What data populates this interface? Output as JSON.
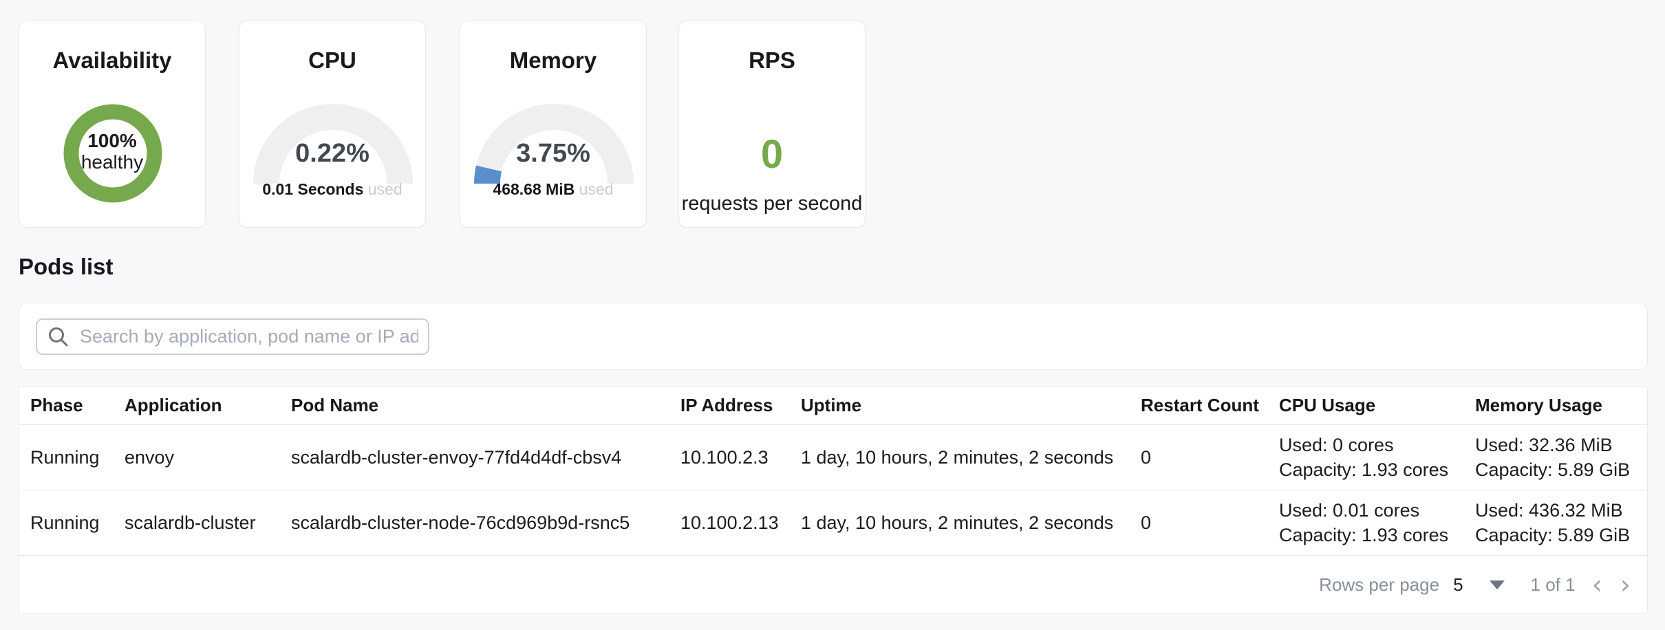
{
  "colors": {
    "accent_green": "#76a94d",
    "gauge_blue": "#5b8dcd",
    "gauge_track": "#efefef",
    "page_background": "#f7f8fa"
  },
  "cards": {
    "availability": {
      "title": "Availability",
      "value": "100%",
      "label": "healthy"
    },
    "cpu": {
      "title": "CPU",
      "percent_text": "0.22%",
      "percent_value": 0.22,
      "used": "0.01 Seconds",
      "used_suffix": "used"
    },
    "memory": {
      "title": "Memory",
      "percent_text": "3.75%",
      "percent_value": 3.75,
      "used": "468.68 MiB",
      "used_suffix": "used"
    },
    "rps": {
      "title": "RPS",
      "value": "0",
      "label": "requests per second"
    }
  },
  "pods": {
    "heading": "Pods list",
    "search_placeholder": "Search by application, pod name or IP address",
    "table": {
      "columns": [
        "Phase",
        "Application",
        "Pod Name",
        "IP Address",
        "Uptime",
        "Restart Count",
        "CPU Usage",
        "Memory Usage"
      ],
      "rows": [
        {
          "phase": "Running",
          "application": "envoy",
          "pod_name": "scalardb-cluster-envoy-77fd4d4df-cbsv4",
          "ip": "10.100.2.3",
          "uptime": "1 day, 10 hours, 2 minutes, 2 seconds",
          "restarts": "0",
          "cpu_used": "Used: 0 cores",
          "cpu_capacity": "Capacity: 1.93 cores",
          "mem_used": "Used: 32.36 MiB",
          "mem_capacity": "Capacity: 5.89 GiB"
        },
        {
          "phase": "Running",
          "application": "scalardb-cluster",
          "pod_name": "scalardb-cluster-node-76cd969b9d-rsnc5",
          "ip": "10.100.2.13",
          "uptime": "1 day, 10 hours, 2 minutes, 2 seconds",
          "restarts": "0",
          "cpu_used": "Used: 0.01 cores",
          "cpu_capacity": "Capacity: 1.93 cores",
          "mem_used": "Used: 436.32 MiB",
          "mem_capacity": "Capacity: 5.89 GiB"
        }
      ],
      "footer": {
        "rows_per_page_label": "Rows per page",
        "rows_per_page_value": "5",
        "page_info": "1 of 1"
      }
    }
  }
}
